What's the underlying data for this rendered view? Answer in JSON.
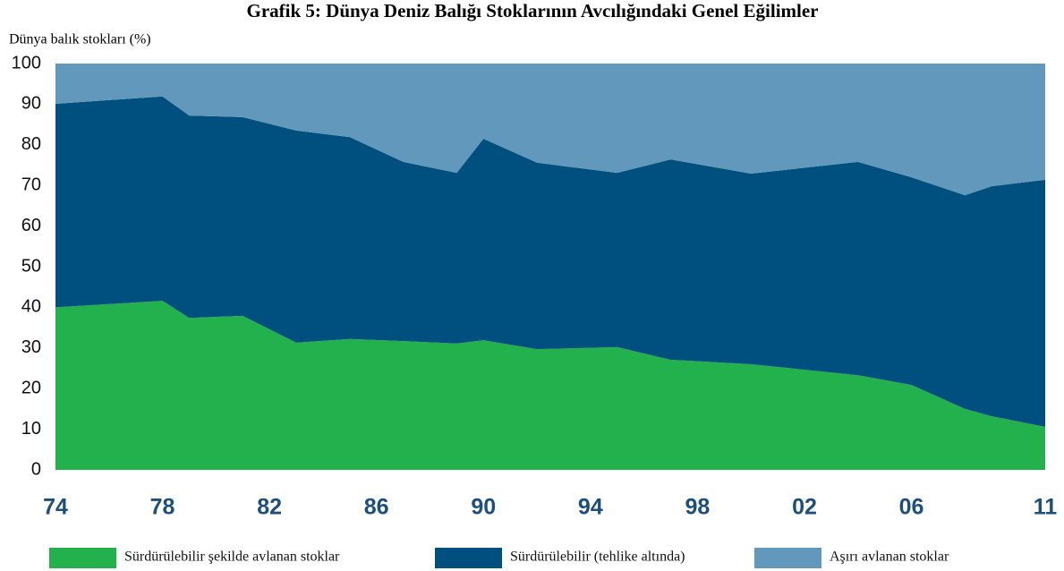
{
  "chart_data": {
    "type": "stacked_area",
    "title": "Grafik 5: Dünya Deniz Balığı Stoklarının Avcılığındaki Genel Eğilimler",
    "y_label": "Dünya balık stokları (%)",
    "x": [
      1974,
      1978,
      1979,
      1981,
      1983,
      1985,
      1987,
      1989,
      1990,
      1992,
      1995,
      1997,
      2000,
      2004,
      2006,
      2008,
      2009,
      2011
    ],
    "series": [
      {
        "name": "Sürdürülebilir şekilde avlanan stoklar",
        "color": "#22b14c",
        "values": [
          40,
          41.6,
          37.4,
          37.9,
          31.3,
          32.2,
          31.7,
          31.1,
          31.9,
          29.7,
          30.2,
          27.1,
          26,
          23.3,
          20.9,
          15,
          13.2,
          10.6
        ]
      },
      {
        "name": "Sürdürülebilir (tehlike altında)",
        "color": "#00507f",
        "values": [
          50.1,
          50.3,
          49.8,
          48.9,
          52.2,
          49.7,
          44.1,
          42,
          49.6,
          45.9,
          42.9,
          49.3,
          46.9,
          52.5,
          51.1,
          52.6,
          56.6,
          60.8
        ]
      },
      {
        "name": "Aşırı avlanan stoklar",
        "color": "#6198bc",
        "values": [
          9.9,
          8.1,
          12.8,
          13.2,
          16.5,
          18.1,
          24.2,
          26.9,
          18.5,
          24.4,
          26.9,
          23.6,
          27.1,
          24.2,
          28,
          32.4,
          30.2,
          28.6
        ]
      }
    ],
    "xlim": [
      1974,
      2011
    ],
    "xticks": [
      {
        "value": 1974,
        "label": "74"
      },
      {
        "value": 1978,
        "label": "78"
      },
      {
        "value": 1982,
        "label": "82"
      },
      {
        "value": 1986,
        "label": "86"
      },
      {
        "value": 1990,
        "label": "90"
      },
      {
        "value": 1994,
        "label": "94"
      },
      {
        "value": 1998,
        "label": "98"
      },
      {
        "value": 2002,
        "label": "02"
      },
      {
        "value": 2006,
        "label": "06"
      },
      {
        "value": 2011,
        "label": "11"
      }
    ],
    "ylim": [
      0,
      100
    ],
    "yticks": [
      0,
      10,
      20,
      30,
      40,
      50,
      60,
      70,
      80,
      90,
      100
    ],
    "grid": false
  }
}
